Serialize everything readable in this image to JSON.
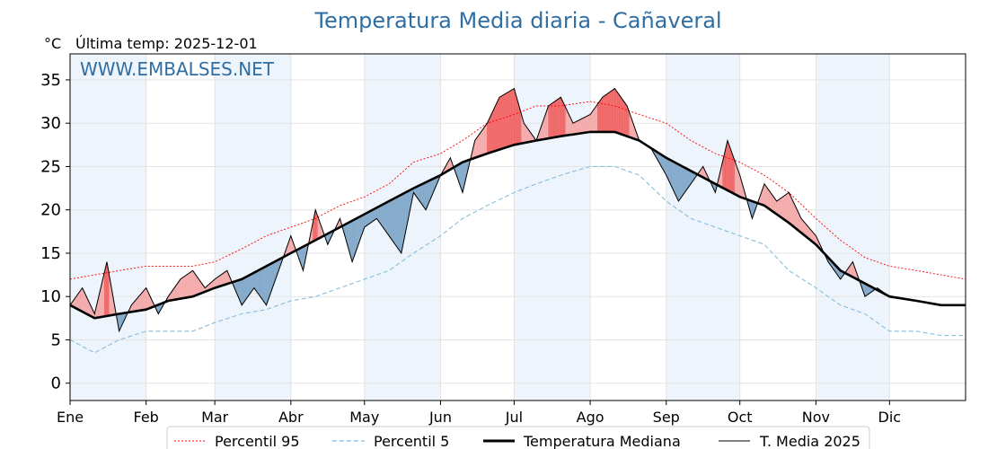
{
  "chart_data": {
    "type": "line",
    "title": "Temperatura Media diaria - Cañaveral",
    "unit_label": "°C",
    "last_temp_label": "Última temp: 2025-12-01",
    "watermark": "WWW.EMBALSES.NET",
    "ylim": [
      -2,
      38
    ],
    "yticks": [
      0,
      5,
      10,
      15,
      20,
      25,
      30,
      35
    ],
    "xlim": [
      0,
      365
    ],
    "months": [
      {
        "label": "Ene",
        "start": 0
      },
      {
        "label": "Feb",
        "start": 31
      },
      {
        "label": "Mar",
        "start": 59
      },
      {
        "label": "Abr",
        "start": 90
      },
      {
        "label": "May",
        "start": 120
      },
      {
        "label": "Jun",
        "start": 151
      },
      {
        "label": "Jul",
        "start": 181
      },
      {
        "label": "Ago",
        "start": 212
      },
      {
        "label": "Sep",
        "start": 243
      },
      {
        "label": "Oct",
        "start": 273
      },
      {
        "label": "Nov",
        "start": 304
      },
      {
        "label": "Dic",
        "start": 334
      }
    ],
    "shaded_months": [
      0,
      2,
      4,
      6,
      8,
      10
    ],
    "legend_position": "bottom",
    "grid": true,
    "colors": {
      "p95": "#ff0000",
      "p5": "#87bedc",
      "median": "#000000",
      "current": "#000000",
      "above_fill": "#f4a7a7",
      "above_extreme_fill": "#f06060",
      "below_fill": "#7fa6c8",
      "month_shade": "#eef4fb",
      "title": "#2f6ea3"
    },
    "series": [
      {
        "name": "Percentil 95",
        "style": "dotted",
        "x": [
          0,
          10,
          20,
          31,
          40,
          50,
          59,
          70,
          80,
          90,
          100,
          110,
          120,
          130,
          140,
          151,
          160,
          170,
          181,
          190,
          200,
          212,
          222,
          232,
          243,
          253,
          263,
          273,
          283,
          293,
          304,
          314,
          324,
          334,
          345,
          355,
          365
        ],
        "values": [
          12,
          12.5,
          13,
          13.5,
          13.5,
          13.5,
          14,
          15.5,
          17,
          18,
          19,
          20.5,
          21.5,
          23,
          25.5,
          26.5,
          28,
          30,
          31,
          32,
          32,
          32.5,
          32,
          31,
          30,
          28,
          26.5,
          25.5,
          24,
          22,
          19,
          16.5,
          14.5,
          13.5,
          13,
          12.5,
          12
        ]
      },
      {
        "name": "Percentil 5",
        "style": "dashed",
        "x": [
          0,
          10,
          20,
          31,
          40,
          50,
          59,
          70,
          80,
          90,
          100,
          110,
          120,
          130,
          140,
          151,
          160,
          170,
          181,
          190,
          200,
          212,
          222,
          232,
          243,
          253,
          263,
          273,
          283,
          293,
          304,
          314,
          324,
          334,
          345,
          355,
          365
        ],
        "values": [
          5,
          3.5,
          5,
          6,
          6,
          6,
          7,
          8,
          8.5,
          9.5,
          10,
          11,
          12,
          13,
          15,
          17,
          19,
          20.5,
          22,
          23,
          24,
          25,
          25,
          24,
          21,
          19,
          18,
          17,
          16,
          13,
          11,
          9,
          8,
          6,
          6,
          5.5,
          5.5
        ]
      },
      {
        "name": "Temperatura Mediana",
        "style": "thick",
        "x": [
          0,
          10,
          20,
          31,
          40,
          50,
          59,
          70,
          80,
          90,
          100,
          110,
          120,
          130,
          140,
          151,
          160,
          170,
          181,
          190,
          200,
          212,
          222,
          232,
          243,
          253,
          263,
          273,
          283,
          293,
          304,
          314,
          324,
          334,
          345,
          355,
          365
        ],
        "values": [
          9,
          7.5,
          8,
          8.5,
          9.5,
          10,
          11,
          12,
          13.5,
          15,
          16.5,
          18,
          19.5,
          21,
          22.5,
          24,
          25.5,
          26.5,
          27.5,
          28,
          28.5,
          29,
          29,
          28,
          26,
          24.5,
          23,
          21.5,
          20.5,
          18.5,
          16,
          13,
          11.5,
          10,
          9.5,
          9,
          9
        ]
      },
      {
        "name": "T. Media 2025",
        "style": "thin",
        "x": [
          0,
          5,
          10,
          15,
          20,
          25,
          31,
          36,
          40,
          45,
          50,
          55,
          59,
          64,
          70,
          75,
          80,
          85,
          90,
          95,
          100,
          105,
          110,
          115,
          120,
          125,
          130,
          135,
          140,
          145,
          151,
          155,
          160,
          165,
          170,
          175,
          181,
          185,
          190,
          195,
          200,
          205,
          212,
          217,
          222,
          227,
          232,
          237,
          243,
          248,
          253,
          258,
          263,
          268,
          273,
          278,
          283,
          288,
          293,
          298,
          304,
          309,
          314,
          319,
          324,
          329,
          334
        ],
        "values": [
          9,
          11,
          8,
          14,
          6,
          9,
          11,
          8,
          10,
          12,
          13,
          11,
          12,
          13,
          9,
          11,
          9,
          13,
          17,
          13,
          20,
          16,
          19,
          14,
          18,
          19,
          17,
          15,
          22,
          20,
          24,
          26,
          22,
          28,
          30,
          33,
          34,
          30,
          28,
          32,
          33,
          30,
          31,
          33,
          34,
          32,
          28,
          27,
          24,
          21,
          23,
          25,
          22,
          28,
          24,
          19,
          23,
          21,
          22,
          19,
          17,
          14,
          12,
          14,
          10,
          11,
          10
        ]
      }
    ]
  }
}
